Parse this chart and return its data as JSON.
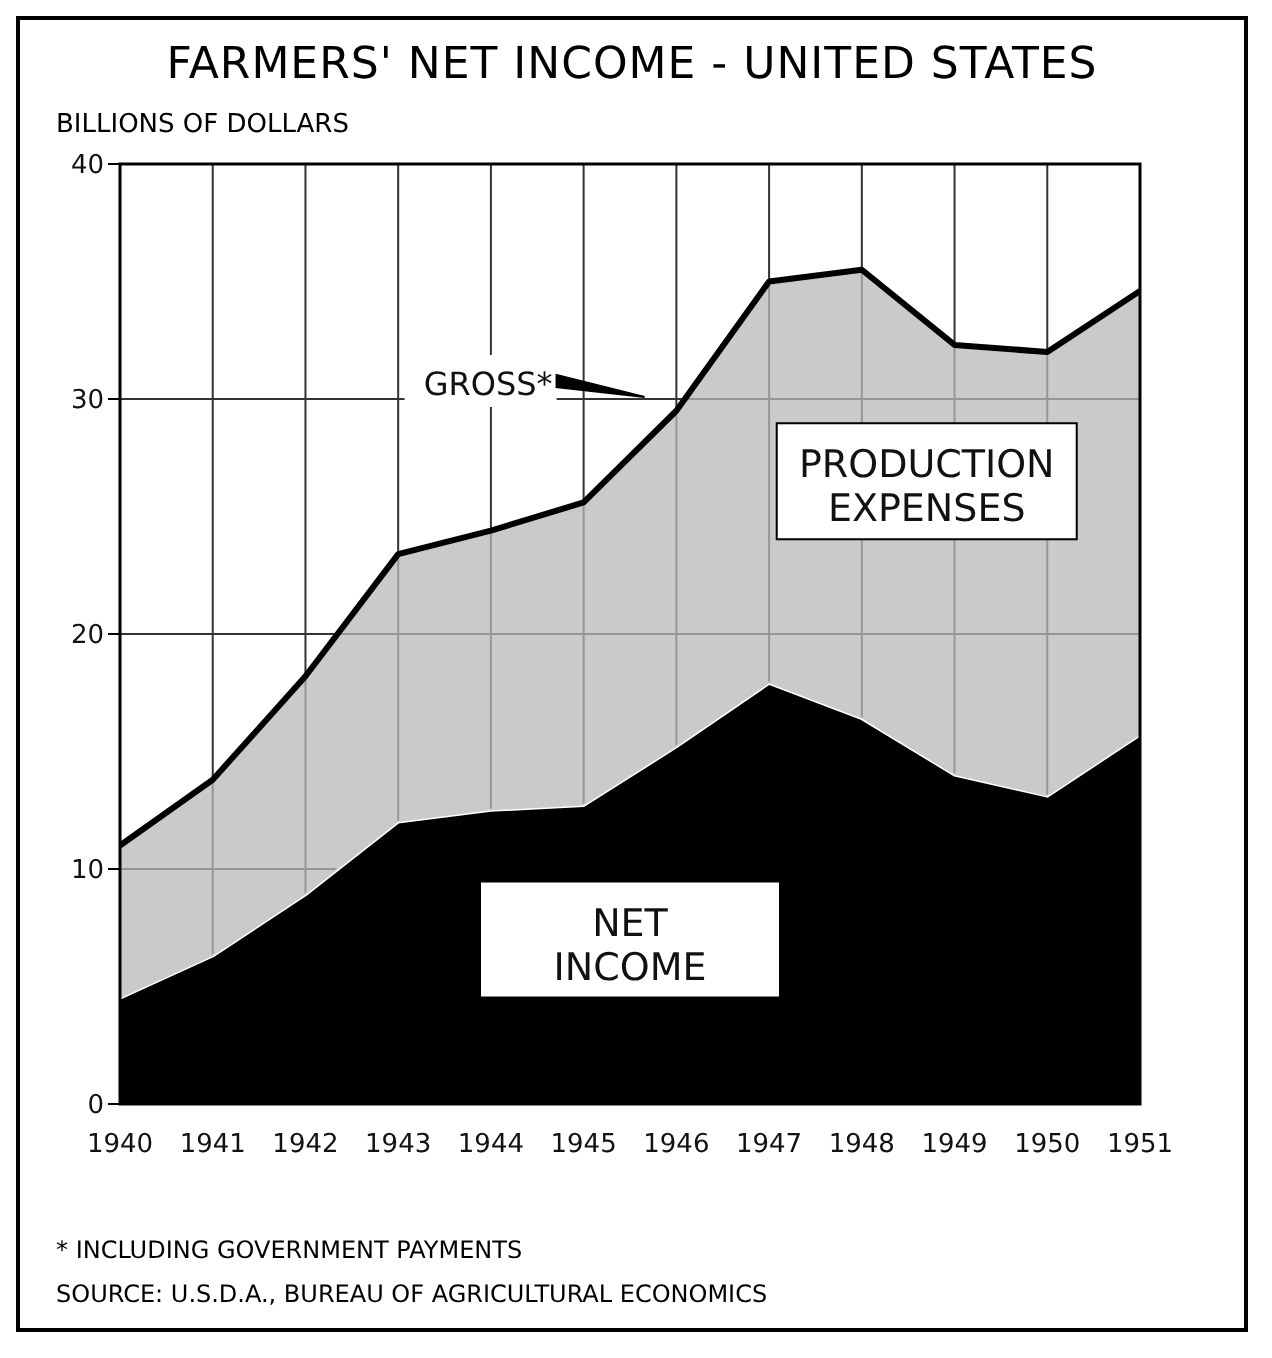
{
  "chart_data": {
    "type": "area",
    "title": "FARMERS' NET INCOME - UNITED STATES",
    "ylabel": "BILLIONS OF DOLLARS",
    "x": [
      1940,
      1941,
      1942,
      1943,
      1944,
      1945,
      1946,
      1947,
      1948,
      1949,
      1950,
      1951
    ],
    "stacked": true,
    "series": [
      {
        "name": "NET INCOME",
        "color": "#000000",
        "values": [
          4.5,
          6.3,
          8.9,
          12.0,
          12.5,
          12.7,
          15.2,
          17.9,
          16.4,
          14.0,
          13.1,
          15.7
        ]
      },
      {
        "name": "PRODUCTION EXPENSES",
        "color": "#b8b8b8",
        "values": [
          6.5,
          7.5,
          9.3,
          11.4,
          11.9,
          12.9,
          14.3,
          17.1,
          19.1,
          18.3,
          18.9,
          18.9
        ]
      }
    ],
    "xlim": [
      1940,
      1951
    ],
    "xticks": [
      1940,
      1941,
      1942,
      1943,
      1944,
      1945,
      1946,
      1947,
      1948,
      1949,
      1950,
      1951
    ],
    "ylim": [
      0,
      40
    ],
    "yticks": [
      0,
      10,
      20,
      30,
      40
    ],
    "grid": true,
    "legend": false,
    "annotations": [
      "GROSS*",
      "* INCLUDING GOVERNMENT PAYMENTS",
      "SOURCE: U.S.D.A., BUREAU OF AGRICULTURAL ECONOMICS"
    ]
  }
}
